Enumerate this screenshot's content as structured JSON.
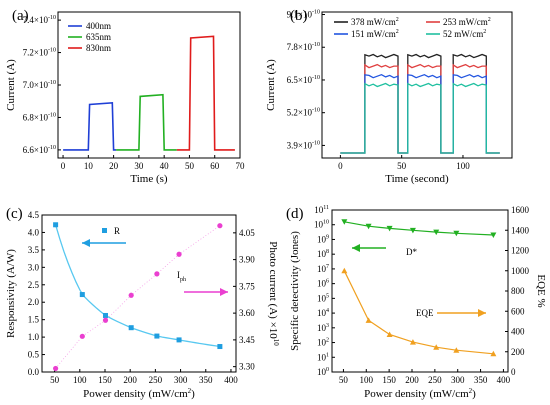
{
  "chart_data": [
    {
      "panel": "(a)",
      "type": "line",
      "xlabel": "Time (s)",
      "ylabel": "Current (A)",
      "xlim": [
        -2,
        70
      ],
      "ylim": [
        6.55e-10,
        7.45e-10
      ],
      "xticks": [
        0,
        10,
        20,
        30,
        40,
        50,
        60,
        70
      ],
      "yticks": [
        {
          "v": 6.6e-10,
          "m": "6.6",
          "e": "-10"
        },
        {
          "v": 6.8e-10,
          "m": "6.8",
          "e": "-10"
        },
        {
          "v": 7e-10,
          "m": "7.0",
          "e": "-10"
        },
        {
          "v": 7.2e-10,
          "m": "7.2",
          "e": "-10"
        },
        {
          "v": 7.4e-10,
          "m": "7.4",
          "e": "-10"
        }
      ],
      "legend_position": "top-left",
      "series": [
        {
          "name": "400nm",
          "color": "#1f3fd6",
          "x": [
            0,
            10,
            10.5,
            19.5,
            20,
            21
          ],
          "y": [
            6.6e-10,
            6.6e-10,
            6.88e-10,
            6.89e-10,
            6.6e-10,
            6.6e-10
          ]
        },
        {
          "name": "635nm",
          "color": "#22b022",
          "x": [
            21,
            30,
            30.5,
            39.5,
            40,
            45
          ],
          "y": [
            6.6e-10,
            6.6e-10,
            6.93e-10,
            6.94e-10,
            6.6e-10,
            6.6e-10
          ]
        },
        {
          "name": "830nm",
          "color": "#e01b1b",
          "x": [
            45,
            50,
            50.5,
            59.5,
            60,
            68
          ],
          "y": [
            6.6e-10,
            6.6e-10,
            7.29e-10,
            7.3e-10,
            6.6e-10,
            6.6e-10
          ]
        }
      ]
    },
    {
      "panel": "(b)",
      "type": "line",
      "xlabel": "Time (second)",
      "ylabel": "Current (A)",
      "xlim": [
        -15,
        140
      ],
      "ylim": [
        3.4e-10,
        9.2e-10
      ],
      "xticks": [
        0,
        50,
        100
      ],
      "yticks": [
        {
          "v": 3.9e-10,
          "m": "3.9",
          "e": "-10"
        },
        {
          "v": 5.2e-10,
          "m": "5.2",
          "e": "-10"
        },
        {
          "v": 6.5e-10,
          "m": "6.5",
          "e": "-10"
        },
        {
          "v": 7.8e-10,
          "m": "7.8",
          "e": "-10"
        },
        {
          "v": 9.1e-10,
          "m": "9.1",
          "e": "-10"
        }
      ],
      "legend_position": "top",
      "pulses": [
        [
          20,
          47
        ],
        [
          55,
          82
        ],
        [
          92,
          119
        ]
      ],
      "baseline": 3.6e-10,
      "trace_x_range": [
        0,
        130
      ],
      "series": [
        {
          "name": "378 mW/cm",
          "sup": "2",
          "color": "#222222",
          "on_value": 7.45e-10
        },
        {
          "name": "253 mW/cm",
          "sup": "2",
          "color": "#e04040",
          "on_value": 7.05e-10
        },
        {
          "name": "151 mW/cm",
          "sup": "2",
          "color": "#2255e0",
          "on_value": 6.65e-10
        },
        {
          "name": "52 mW/cm",
          "sup": "2",
          "color": "#20c0a0",
          "on_value": 6.3e-10
        }
      ]
    },
    {
      "panel": "(c)",
      "type": "scatter",
      "xlabel": "Power density (mW/cm",
      "xlabel_sup": "2",
      "xlabel_tail": ")",
      "ylabel": "Responsivity (A/W)",
      "y2label": "Photo current (A)",
      "y2label_mult": "×10",
      "y2label_exp": "10",
      "xlim": [
        25,
        410
      ],
      "ylim": [
        0,
        4.5
      ],
      "y2lim": [
        3.27,
        4.15
      ],
      "xticks": [
        50,
        100,
        150,
        200,
        250,
        300,
        350,
        400
      ],
      "yticks": [
        "0.0",
        "0.5",
        "1.0",
        "1.5",
        "2.0",
        "2.5",
        "3.0",
        "3.5",
        "4.0",
        "4.5"
      ],
      "y2ticks": [
        "3.30",
        "3.45",
        "3.60",
        "3.75",
        "3.90",
        "4.05"
      ],
      "series": [
        {
          "name": "R",
          "axis": "left",
          "color": "#1f9ee0",
          "x": [
            52,
            105,
            151,
            202,
            253,
            297,
            378
          ],
          "y": [
            4.22,
            2.22,
            1.62,
            1.27,
            1.03,
            0.92,
            0.73
          ]
        },
        {
          "name": "I",
          "sub": "ph",
          "axis": "right",
          "color": "#ea3fd0",
          "x": [
            52,
            105,
            151,
            202,
            253,
            297,
            378
          ],
          "y": [
            3.29,
            3.47,
            3.56,
            3.7,
            3.82,
            3.93,
            4.09
          ]
        }
      ]
    },
    {
      "panel": "(d)",
      "type": "line",
      "xlabel": "Power density (mW/cm",
      "xlabel_sup": "2",
      "xlabel_tail": ")",
      "ylabel": "Specific detectivity (Jones)",
      "y2label": "EQE %",
      "xlim": [
        25,
        410
      ],
      "ylim_log": [
        0,
        11
      ],
      "y2lim": [
        0,
        1600
      ],
      "xticks": [
        50,
        100,
        150,
        200,
        250,
        300,
        350,
        400
      ],
      "yticks_exp": [
        "0",
        "1",
        "2",
        "3",
        "4",
        "5",
        "6",
        "7",
        "8",
        "9",
        "10",
        "11"
      ],
      "y2ticks": [
        "0",
        "200",
        "400",
        "600",
        "800",
        "1000",
        "1200",
        "1400",
        "1600"
      ],
      "series": [
        {
          "name": "D*",
          "axis": "left",
          "color": "#22b022",
          "x": [
            52,
            105,
            151,
            202,
            253,
            297,
            378
          ],
          "log10y": [
            10.2,
            9.9,
            9.75,
            9.62,
            9.5,
            9.42,
            9.3
          ]
        },
        {
          "name": "EQE",
          "axis": "right",
          "color": "#f0a020",
          "x": [
            52,
            105,
            151,
            202,
            253,
            297,
            378
          ],
          "y": [
            1000,
            510,
            370,
            295,
            245,
            215,
            180
          ]
        }
      ]
    }
  ]
}
